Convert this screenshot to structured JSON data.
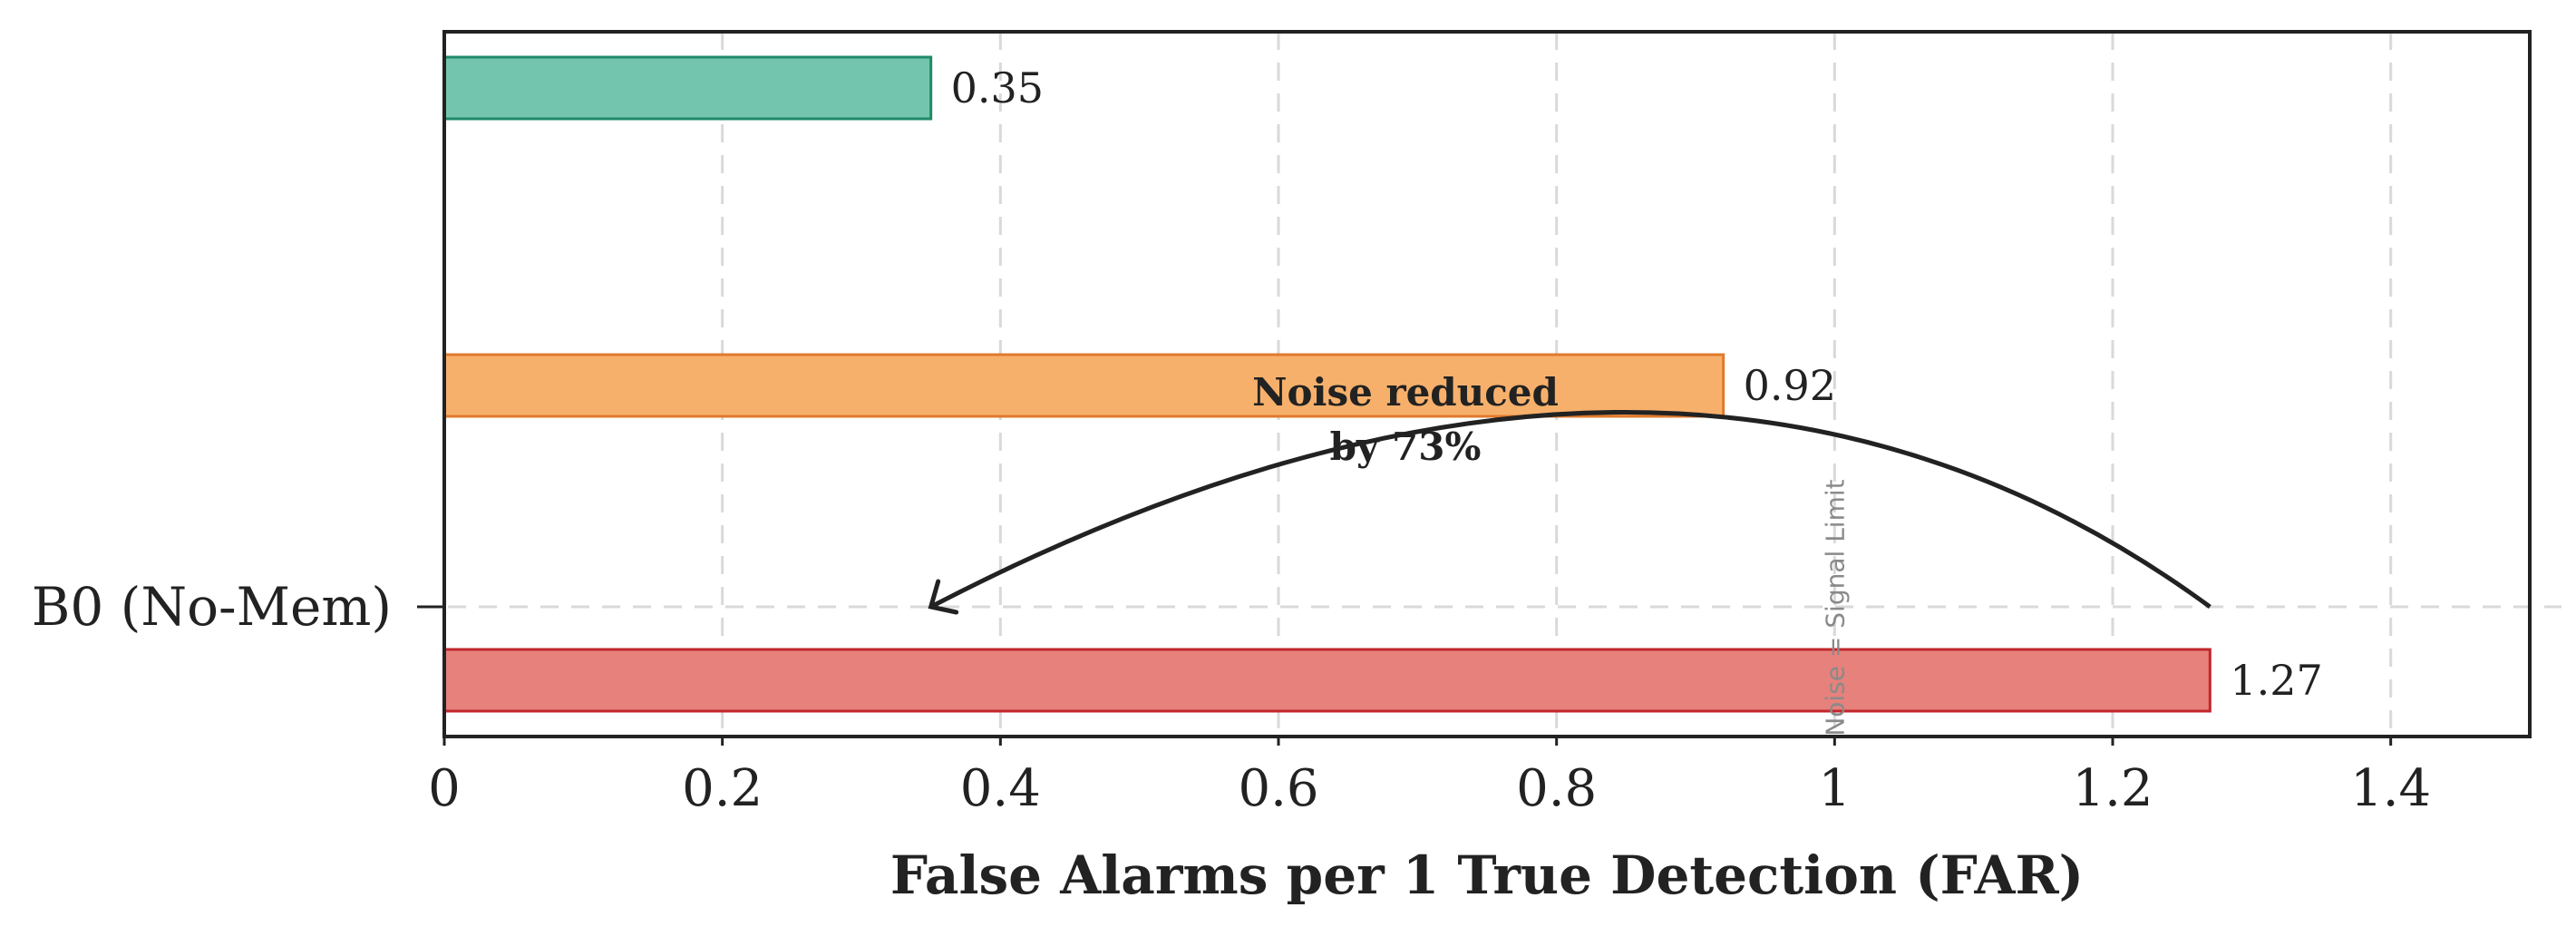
{
  "chart_data": {
    "type": "bar",
    "orientation": "horizontal",
    "categories": [
      "",
      "",
      "B0 (No-Mem)"
    ],
    "values": [
      0.35,
      0.92,
      1.27
    ],
    "value_labels": [
      "0.35",
      "0.92",
      "1.27"
    ],
    "colors": {
      "fills": [
        "#73c6ad",
        "#f7b06b",
        "#e6817c"
      ],
      "strokes": [
        "#1f8a68",
        "#e07a2c",
        "#c1272d"
      ]
    },
    "xlabel": "False Alarms per 1 True Detection (FAR)",
    "xlim": [
      0,
      1.5
    ],
    "xticks": [
      0,
      0.2,
      0.4,
      0.6,
      0.8,
      1.0,
      1.2,
      1.4
    ],
    "xtick_labels": [
      "0",
      "0.2",
      "0.4",
      "0.6",
      "0.8",
      "1",
      "1.2",
      "1.4"
    ],
    "grid": true,
    "reference_line": {
      "x": 1.0,
      "label": "Noise = Signal Limit"
    },
    "annotation": {
      "lines": [
        "Noise reduced",
        "by 73%"
      ],
      "arrow_from": {
        "x": 1.27,
        "category_index": 2
      },
      "arrow_to": {
        "x": 0.35,
        "category_index": 2
      }
    }
  }
}
